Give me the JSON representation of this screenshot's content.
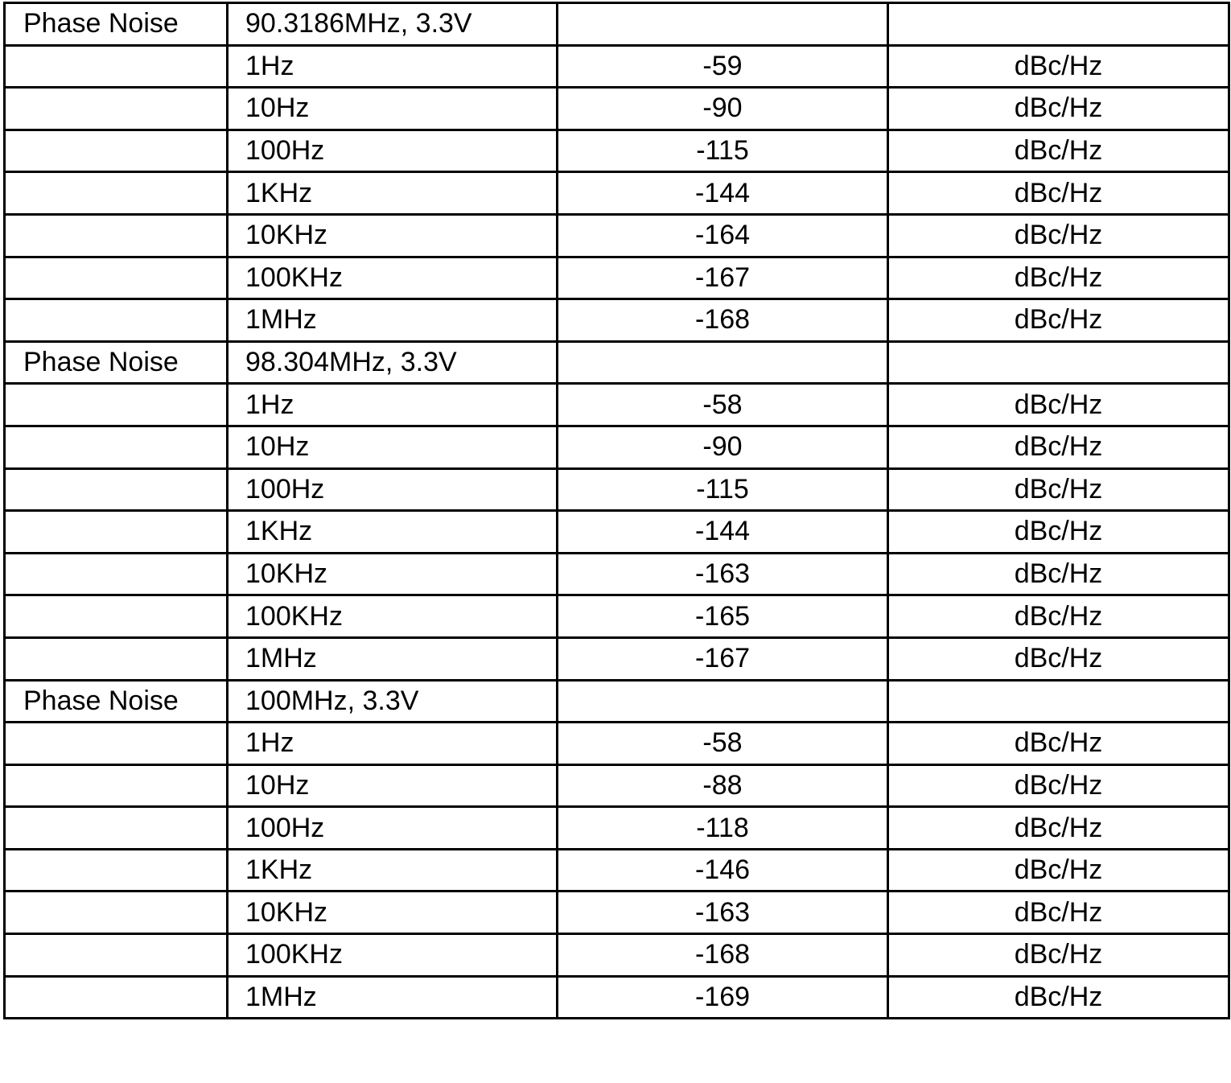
{
  "table": {
    "sections": [
      {
        "parameter": "Phase Noise",
        "condition": "90.3186MHz, 3.3V",
        "rows": [
          {
            "offset": "1Hz",
            "value": "-59",
            "unit": "dBc/Hz"
          },
          {
            "offset": "10Hz",
            "value": "-90",
            "unit": "dBc/Hz"
          },
          {
            "offset": "100Hz",
            "value": "-115",
            "unit": "dBc/Hz"
          },
          {
            "offset": "1KHz",
            "value": "-144",
            "unit": "dBc/Hz"
          },
          {
            "offset": "10KHz",
            "value": "-164",
            "unit": "dBc/Hz"
          },
          {
            "offset": "100KHz",
            "value": "-167",
            "unit": "dBc/Hz"
          },
          {
            "offset": "1MHz",
            "value": "-168",
            "unit": "dBc/Hz"
          }
        ]
      },
      {
        "parameter": "Phase Noise",
        "condition": "98.304MHz, 3.3V",
        "rows": [
          {
            "offset": "1Hz",
            "value": "-58",
            "unit": "dBc/Hz"
          },
          {
            "offset": "10Hz",
            "value": "-90",
            "unit": "dBc/Hz"
          },
          {
            "offset": "100Hz",
            "value": "-115",
            "unit": "dBc/Hz"
          },
          {
            "offset": "1KHz",
            "value": "-144",
            "unit": "dBc/Hz"
          },
          {
            "offset": "10KHz",
            "value": "-163",
            "unit": "dBc/Hz"
          },
          {
            "offset": "100KHz",
            "value": "-165",
            "unit": "dBc/Hz"
          },
          {
            "offset": "1MHz",
            "value": "-167",
            "unit": "dBc/Hz"
          }
        ]
      },
      {
        "parameter": "Phase Noise",
        "condition": "100MHz, 3.3V",
        "rows": [
          {
            "offset": "1Hz",
            "value": "-58",
            "unit": "dBc/Hz"
          },
          {
            "offset": "10Hz",
            "value": "-88",
            "unit": "dBc/Hz"
          },
          {
            "offset": "100Hz",
            "value": "-118",
            "unit": "dBc/Hz"
          },
          {
            "offset": "1KHz",
            "value": "-146",
            "unit": "dBc/Hz"
          },
          {
            "offset": "10KHz",
            "value": "-163",
            "unit": "dBc/Hz"
          },
          {
            "offset": "100KHz",
            "value": "-168",
            "unit": "dBc/Hz"
          },
          {
            "offset": "1MHz",
            "value": "-169",
            "unit": "dBc/Hz"
          }
        ]
      }
    ]
  }
}
